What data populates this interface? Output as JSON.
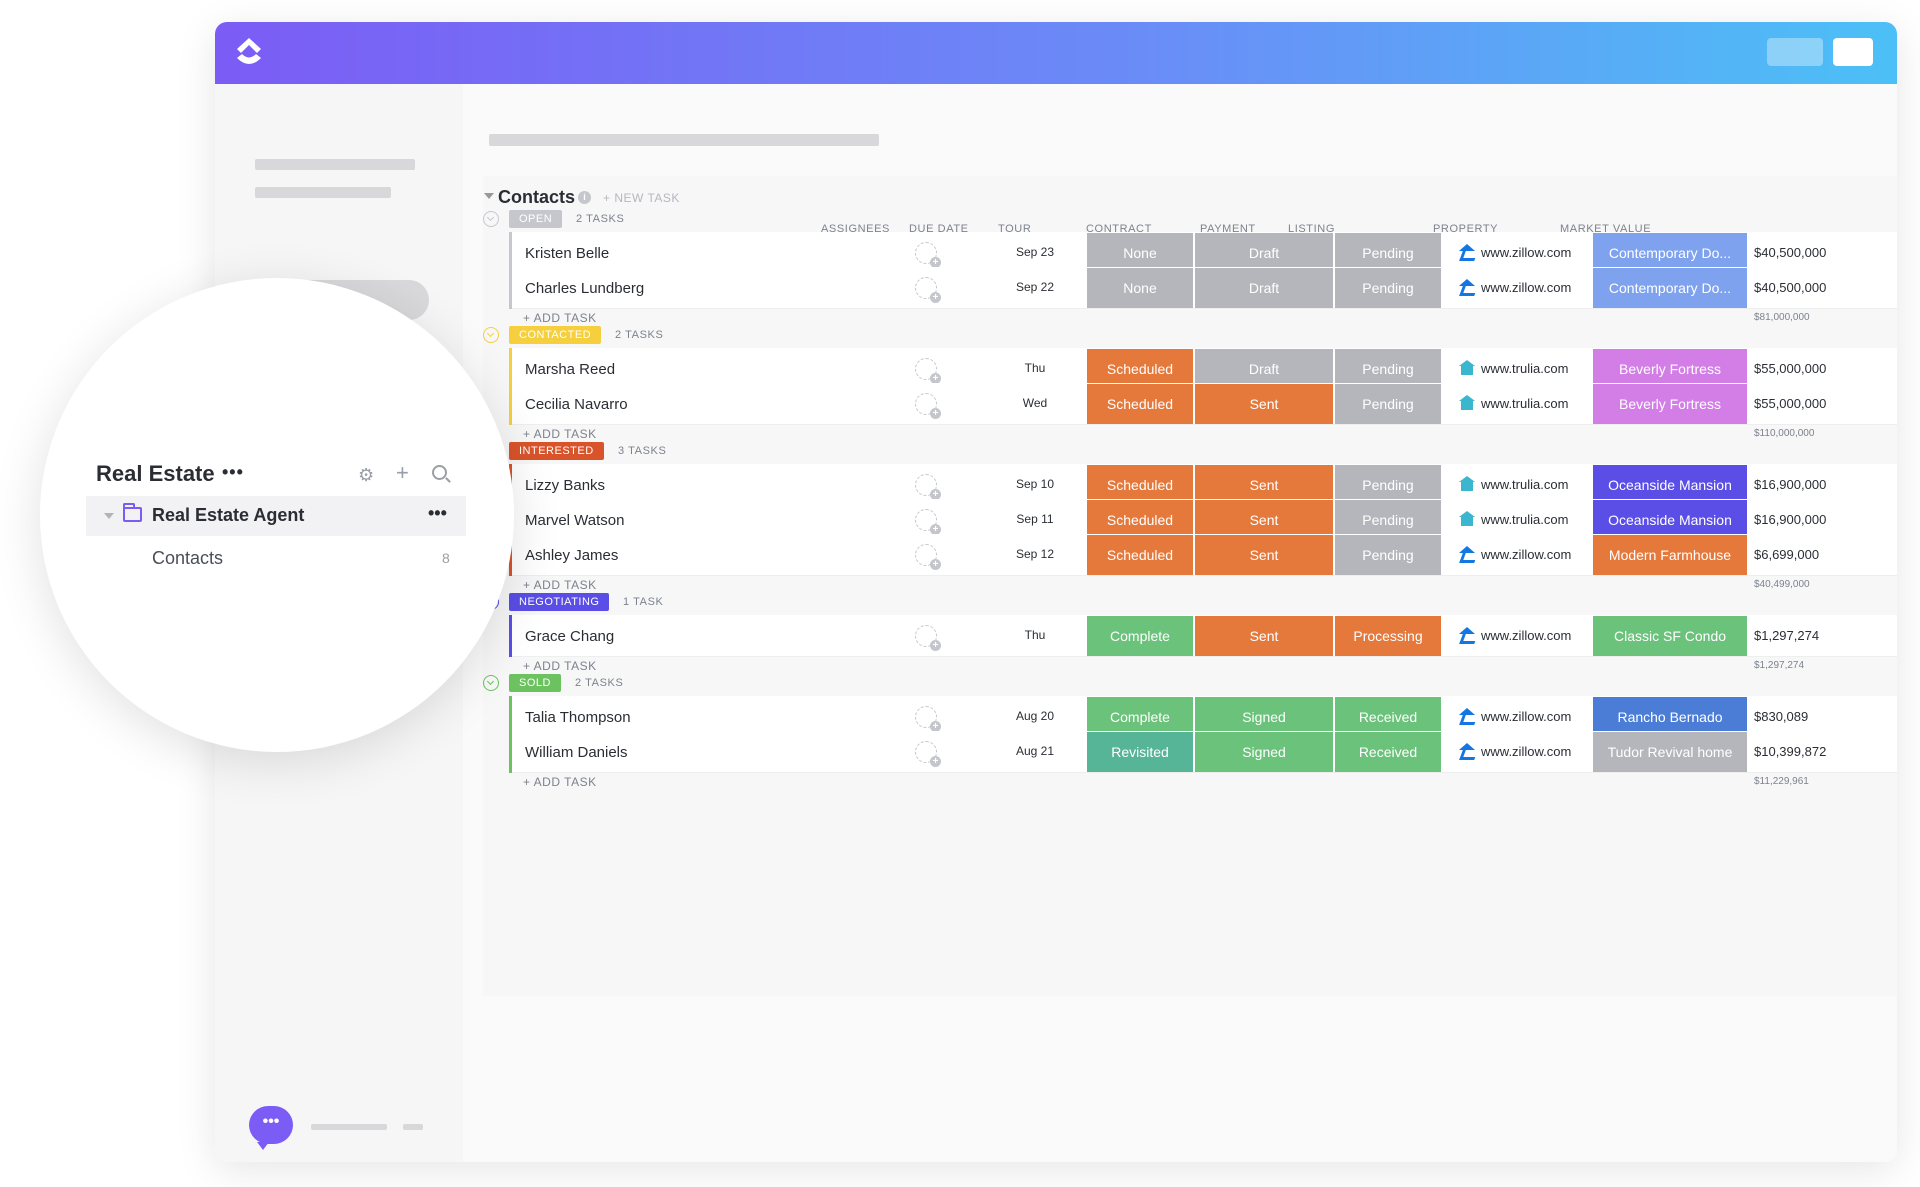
{
  "sidebar_popout": {
    "space_title": "Real Estate",
    "space_menu": "•••",
    "folder_label": "Real Estate Agent",
    "folder_menu": "•••",
    "list_label": "Contacts",
    "list_count": "8"
  },
  "list": {
    "title": "Contacts",
    "info_glyph": "i",
    "new_task_label": "+ NEW TASK"
  },
  "columns": {
    "assignees": "ASSIGNEES",
    "due_date": "DUE DATE",
    "tour": "TOUR",
    "contract": "CONTRACT",
    "payment": "PAYMENT",
    "listing": "LISTING",
    "property": "PROPERTY",
    "market_value": "MARKET VALUE"
  },
  "add_task_label": "+ ADD TASK",
  "chat_glyph": "•••",
  "groups": [
    {
      "status": "OPEN",
      "count": "2 TASKS",
      "color": "#c5c7cc",
      "total": "$81,000,000",
      "rows": [
        {
          "name": "Kristen Belle",
          "due": "Sep 23",
          "tour": "None",
          "contract": "Draft",
          "payment": "Pending",
          "listing": "www.zillow.com",
          "listing_icon": "zillow-icon",
          "property": "Contemporary Do...",
          "value": "$40,500,000"
        },
        {
          "name": "Charles Lundberg",
          "due": "Sep 22",
          "tour": "None",
          "contract": "Draft",
          "payment": "Pending",
          "listing": "www.zillow.com",
          "listing_icon": "zillow-icon",
          "property": "Contemporary Do...",
          "value": "$40,500,000"
        }
      ]
    },
    {
      "status": "CONTACTED",
      "count": "2 TASKS",
      "color": "#f5cf3d",
      "total": "$110,000,000",
      "rows": [
        {
          "name": "Marsha Reed",
          "due": "Thu",
          "tour": "Scheduled",
          "contract": "Draft",
          "payment": "Pending",
          "listing": "www.trulia.com",
          "listing_icon": "trulia-icon",
          "property": "Beverly Fortress",
          "value": "$55,000,000"
        },
        {
          "name": "Cecilia Navarro",
          "due": "Wed",
          "tour": "Scheduled",
          "contract": "Sent",
          "payment": "Pending",
          "listing": "www.trulia.com",
          "listing_icon": "trulia-icon",
          "property": "Beverly Fortress",
          "value": "$55,000,000"
        }
      ]
    },
    {
      "status": "INTERESTED",
      "count": "3 TASKS",
      "color": "#d9532b",
      "total": "$40,499,000",
      "rows": [
        {
          "name": "Lizzy Banks",
          "due": "Sep 10",
          "tour": "Scheduled",
          "contract": "Sent",
          "payment": "Pending",
          "listing": "www.trulia.com",
          "listing_icon": "trulia-icon",
          "property": "Oceanside Mansion",
          "value": "$16,900,000"
        },
        {
          "name": "Marvel Watson",
          "due": "Sep 11",
          "tour": "Scheduled",
          "contract": "Sent",
          "payment": "Pending",
          "listing": "www.trulia.com",
          "listing_icon": "trulia-icon",
          "property": "Oceanside Mansion",
          "value": "$16,900,000"
        },
        {
          "name": "Ashley James",
          "due": "Sep 12",
          "tour": "Scheduled",
          "contract": "Sent",
          "payment": "Pending",
          "listing": "www.zillow.com",
          "listing_icon": "zillow-icon",
          "property": "Modern Farmhouse",
          "value": "$6,699,000"
        }
      ]
    },
    {
      "status": "NEGOTIATING",
      "count": "1 TASK",
      "color": "#5a4ee6",
      "total": "$1,297,274",
      "rows": [
        {
          "name": "Grace Chang",
          "due": "Thu",
          "tour": "Complete",
          "contract": "Sent",
          "payment": "Processing",
          "listing": "www.zillow.com",
          "listing_icon": "zillow-icon",
          "property": "Classic SF Condo",
          "value": "$1,297,274"
        }
      ]
    },
    {
      "status": "SOLD",
      "count": "2 TASKS",
      "color": "#6bc25f",
      "total": "$11,229,961",
      "rows": [
        {
          "name": "Talia Thompson",
          "due": "Aug 20",
          "tour": "Complete",
          "contract": "Signed",
          "payment": "Received",
          "listing": "www.zillow.com",
          "listing_icon": "zillow-icon",
          "property": "Rancho Bernado",
          "value": "$830,089"
        },
        {
          "name": "William Daniels",
          "due": "Aug 21",
          "tour": "Revisited",
          "contract": "Signed",
          "payment": "Received",
          "listing": "www.zillow.com",
          "listing_icon": "zillow-icon",
          "property": "Tudor Revival home",
          "value": "$10,399,872"
        }
      ]
    }
  ],
  "status_colors": {
    "None": "#b4b6bb",
    "Draft": "#b4b6bb",
    "Pending": "#b4b6bb",
    "Scheduled": "#e5793b",
    "Sent": "#e5793b",
    "Processing": "#e5793b",
    "Complete": "#6bc27a",
    "Signed": "#6bc27a",
    "Received": "#6bc27a",
    "Revisited": "#55b596"
  },
  "property_colors": {
    "Contemporary Do...": "#7fa2ee",
    "Beverly Fortress": "#d37ee6",
    "Oceanside Mansion": "#5a4ee6",
    "Modern Farmhouse": "#e5793b",
    "Classic SF Condo": "#6bc27a",
    "Rancho Bernado": "#4b7dd6",
    "Tudor Revival home": "#b4b6bb"
  }
}
